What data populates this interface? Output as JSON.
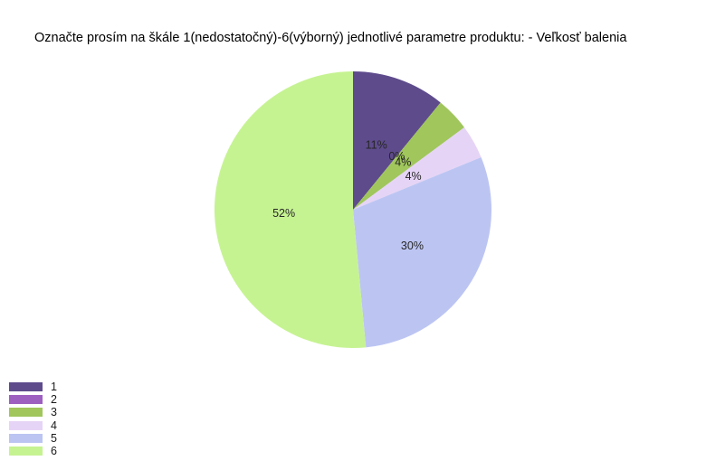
{
  "chart_data": {
    "type": "pie",
    "title": "Označte prosím na škále 1(nedostatočný)-6(výborný) jednotlivé parametre produktu: - Veľkosť balenia",
    "categories": [
      "1",
      "2",
      "3",
      "4",
      "5",
      "6"
    ],
    "values": [
      11,
      0,
      4,
      4,
      30,
      52
    ],
    "slice_labels": [
      "11%",
      "0%",
      "4%",
      "4%",
      "30%",
      "52%"
    ],
    "colors": [
      "#5e4b8c",
      "#9d5fc0",
      "#a0c65c",
      "#e6d4f6",
      "#bcc5f2",
      "#c6f392"
    ],
    "unit": "%",
    "start_angle": "12-oclock",
    "direction": "clockwise",
    "legend_position": "bottom-left",
    "label_color": "#262626",
    "background": "#ffffff"
  }
}
